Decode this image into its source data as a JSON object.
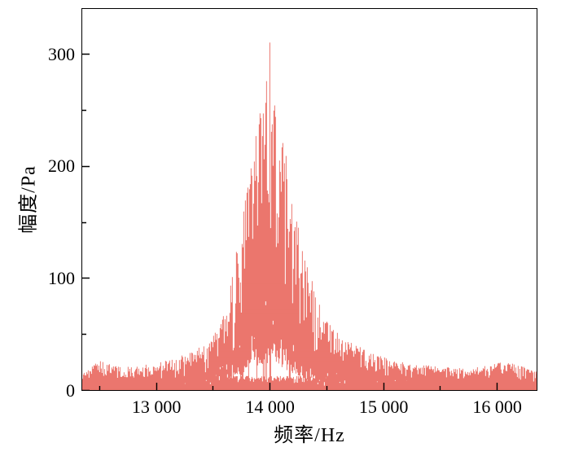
{
  "figure": {
    "background": "#ffffff",
    "frame_color": "#000000",
    "tick_color": "#000000"
  },
  "chart_data": {
    "type": "line",
    "title": "",
    "xlabel": "频率/Hz",
    "ylabel": "幅度/Pa",
    "legend": [],
    "grid": false,
    "series_color": "#e23b2e",
    "xlim": [
      12350,
      16350
    ],
    "ylim": [
      0,
      340
    ],
    "x_ticks": [
      13000,
      14000,
      15000,
      16000
    ],
    "x_tick_labels": [
      "13 000",
      "14 000",
      "15 000",
      "16 000"
    ],
    "x_minor_step": 500,
    "y_ticks": [
      0,
      100,
      200,
      300
    ],
    "y_tick_labels": [
      "0",
      "100",
      "200",
      "300"
    ],
    "y_minor_step": 50,
    "peak": {
      "frequency_hz": 14000,
      "amplitude_pa": 310
    },
    "baseline_amplitude_pa": 12,
    "envelope": [
      [
        12350,
        18
      ],
      [
        12500,
        26
      ],
      [
        12700,
        20
      ],
      [
        13000,
        24
      ],
      [
        13200,
        30
      ],
      [
        13400,
        40
      ],
      [
        13500,
        48
      ],
      [
        13600,
        72
      ],
      [
        13700,
        120
      ],
      [
        13780,
        170
      ],
      [
        13850,
        215
      ],
      [
        13900,
        242
      ],
      [
        13950,
        268
      ],
      [
        14000,
        310
      ],
      [
        14050,
        260
      ],
      [
        14100,
        235
      ],
      [
        14150,
        205
      ],
      [
        14200,
        172
      ],
      [
        14300,
        120
      ],
      [
        14400,
        88
      ],
      [
        14500,
        62
      ],
      [
        14650,
        46
      ],
      [
        14800,
        38
      ],
      [
        15000,
        30
      ],
      [
        15200,
        24
      ],
      [
        15500,
        21
      ],
      [
        15800,
        20
      ],
      [
        16050,
        26
      ],
      [
        16200,
        22
      ],
      [
        16350,
        17
      ]
    ],
    "noise_seed": 7,
    "noise_bins": 2300
  }
}
